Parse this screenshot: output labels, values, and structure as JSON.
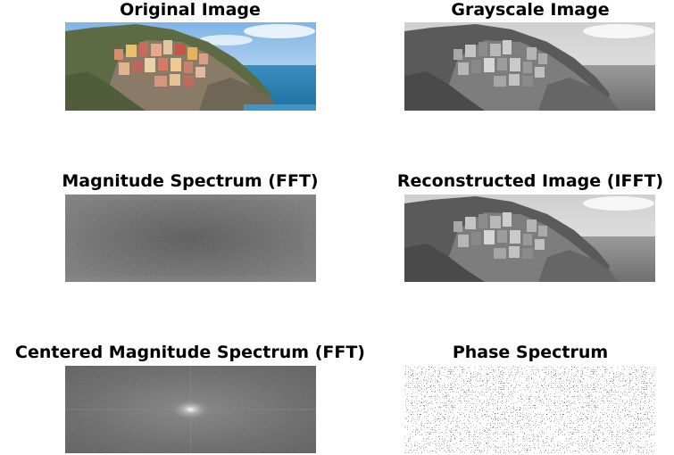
{
  "panels": [
    {
      "id": "original",
      "title": "Original Image"
    },
    {
      "id": "grayscale",
      "title": "Grayscale Image"
    },
    {
      "id": "magnitude",
      "title": "Magnitude Spectrum (FFT)"
    },
    {
      "id": "reconstructed",
      "title": "Reconstructed Image (IFFT)"
    },
    {
      "id": "centered",
      "title": "Centered Magnitude Spectrum (FFT)"
    },
    {
      "id": "phase",
      "title": "Phase Spectrum"
    }
  ]
}
